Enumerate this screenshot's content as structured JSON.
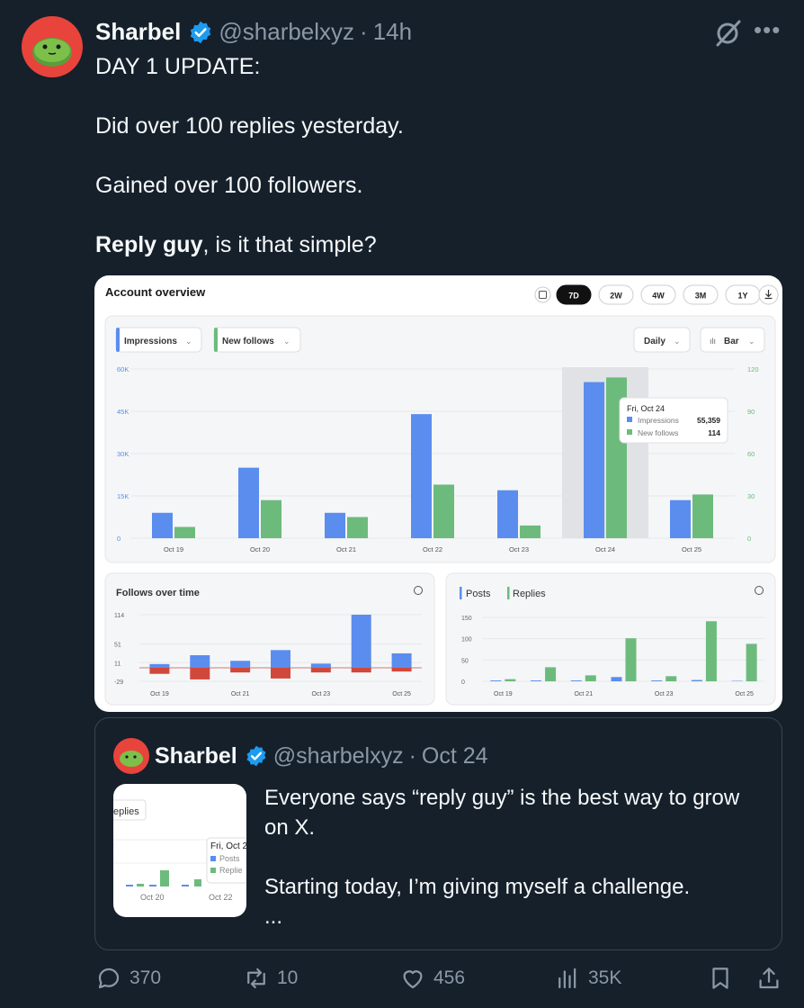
{
  "tweet": {
    "author_name": "Sharbel",
    "handle": "@sharbelxyz",
    "separator": "·",
    "time": "14h",
    "lines": [
      "DAY 1 UPDATE:",
      "Did over 100 replies yesterday.",
      "Gained over 100 followers."
    ],
    "bold_lead": "Reply guy",
    "tail": ", is it that simple?"
  },
  "dashboard": {
    "title": "Account overview",
    "ranges": [
      "7D",
      "2W",
      "4W",
      "3M",
      "1Y"
    ],
    "active_range": "7D",
    "metric_a": "Impressions",
    "metric_b": "New follows",
    "interval": "Daily",
    "chart_kind": "Bar",
    "tooltip": {
      "date": "Fri, Oct 24",
      "impressions_label": "Impressions",
      "impressions_value": "55,359",
      "follows_label": "New follows",
      "follows_value": "114"
    },
    "follows_title": "Follows over time",
    "posts_label": "Posts",
    "replies_label": "Replies"
  },
  "chart_data": [
    {
      "type": "bar",
      "categories": [
        "Oct 19",
        "Oct 20",
        "Oct 21",
        "Oct 22",
        "Oct 23",
        "Oct 24",
        "Oct 25"
      ],
      "series": [
        {
          "name": "Impressions",
          "values": [
            9000,
            25000,
            9000,
            44000,
            17000,
            55359,
            13500
          ]
        },
        {
          "name": "New follows",
          "values": [
            8,
            27,
            15,
            38,
            9,
            114,
            31
          ]
        }
      ],
      "y_left_ticks": [
        "0",
        "15K",
        "30K",
        "45K",
        "60K"
      ],
      "y_right_ticks": [
        "0",
        "30",
        "60",
        "90",
        "120"
      ],
      "ylim_left": [
        0,
        60000
      ],
      "ylim_right": [
        0,
        120
      ],
      "colors": [
        "#5b8def",
        "#6cbb7d"
      ]
    },
    {
      "type": "bar",
      "title": "Follows over time",
      "categories": [
        "Oct 19",
        "Oct 20",
        "Oct 21",
        "Oct 22",
        "Oct 23",
        "Oct 24",
        "Oct 25"
      ],
      "x_ticks": [
        "Oct 19",
        "Oct 21",
        "Oct 23",
        "Oct 25"
      ],
      "series": [
        {
          "values": [
            8,
            27,
            15,
            38,
            9,
            114,
            31
          ]
        },
        {
          "values": [
            -13,
            -25,
            -10,
            -23,
            -10,
            -10,
            -8
          ]
        }
      ],
      "y_ticks": [
        "114",
        "51",
        "11",
        "-29"
      ],
      "ylim": [
        -29,
        114
      ],
      "colors": [
        "#5b8def",
        "#d0483c"
      ]
    },
    {
      "type": "bar",
      "categories": [
        "Oct 19",
        "Oct 20",
        "Oct 21",
        "Oct 22",
        "Oct 23",
        "Oct 24",
        "Oct 25"
      ],
      "x_ticks": [
        "Oct 19",
        "Oct 21",
        "Oct 23",
        "Oct 25"
      ],
      "series": [
        {
          "name": "Posts",
          "values": [
            2,
            2,
            2,
            10,
            2,
            3,
            1
          ]
        },
        {
          "name": "Replies",
          "values": [
            5,
            33,
            14,
            101,
            12,
            141,
            88
          ]
        }
      ],
      "y_ticks": [
        "0",
        "50",
        "100",
        "150"
      ],
      "ylim": [
        0,
        150
      ],
      "colors": [
        "#5b8def",
        "#6cbb7d"
      ]
    }
  ],
  "quote": {
    "author_name": "Sharbel",
    "handle": "@sharbelxyz",
    "separator": "·",
    "date": "Oct 24",
    "line1": "Everyone says “reply guy” is the best way to grow on X.",
    "line2": "Starting today, I’m giving myself a challenge.",
    "ellipsis": "...",
    "thumb_title": "eplies",
    "thumb_tip_date": "Fri, Oct 2",
    "thumb_tip_a": "Posts",
    "thumb_tip_b": "Replie",
    "thumb_x1": "Oct 20",
    "thumb_x2": "Oct 22"
  },
  "actions": {
    "replies": "370",
    "reposts": "10",
    "likes": "456",
    "views": "35K"
  },
  "colors": {
    "background": "#15202b",
    "verified": "#1d9bf0",
    "muted": "#8b98a5"
  }
}
